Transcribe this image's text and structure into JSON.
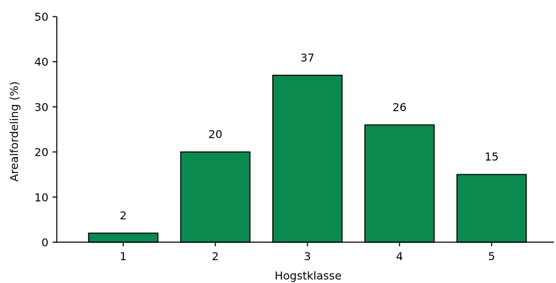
{
  "chart_data": {
    "type": "bar",
    "title": "",
    "xlabel": "Hogstklasse",
    "ylabel": "Arealfordeling (%)",
    "categories": [
      "1",
      "2",
      "3",
      "4",
      "5"
    ],
    "values": [
      2,
      20,
      37,
      26,
      15
    ],
    "data_labels": [
      "2",
      "20",
      "37",
      "26",
      "15"
    ],
    "ylim": [
      0,
      50
    ],
    "yticks": [
      "0",
      "10",
      "20",
      "30",
      "40",
      "50"
    ],
    "bar_color": "#0a8a4e",
    "grid": false,
    "legend": "none"
  }
}
